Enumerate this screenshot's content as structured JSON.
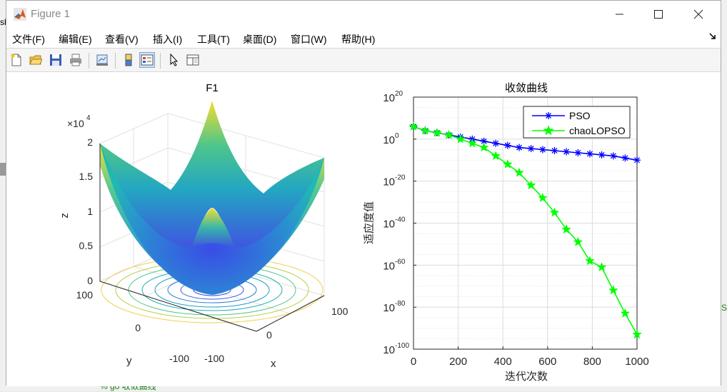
{
  "window": {
    "title": "Figure 1"
  },
  "menu": [
    "文件(F)",
    "编辑(E)",
    "查看(V)",
    "插入(I)",
    "工具(T)",
    "桌面(D)",
    "窗口(W)",
    "帮助(H)"
  ],
  "background": {
    "left_fragment": "sk",
    "right_fragment": "S",
    "code_line": "% go 收敛曲线"
  },
  "surface_plot": {
    "title": "F1",
    "z_exponent_base": "×10",
    "z_exponent_power": "4",
    "z_ticks": [
      "2",
      "1.5",
      "1",
      "0.5",
      "0"
    ],
    "zlabel": "z",
    "y_ticks": [
      "100",
      "0",
      "-100"
    ],
    "ylabel": "y",
    "x_ticks": [
      "-100",
      "0",
      "100"
    ],
    "xlabel": "x"
  },
  "chart_data": {
    "type": "line",
    "title": "收敛曲线",
    "xlabel": "迭代次数",
    "ylabel": "适应度值",
    "xlim": [
      0,
      1000
    ],
    "ylim_log10": [
      -100,
      20
    ],
    "x_ticks": [
      "0",
      "200",
      "400",
      "600",
      "800",
      "1000"
    ],
    "y_ticks": [
      {
        "base": "10",
        "exp": "20"
      },
      {
        "base": "10",
        "exp": "0"
      },
      {
        "base": "10",
        "exp": "-20"
      },
      {
        "base": "10",
        "exp": "-40"
      },
      {
        "base": "10",
        "exp": "-60"
      },
      {
        "base": "10",
        "exp": "-80"
      },
      {
        "base": "10",
        "exp": "-100"
      }
    ],
    "legend_position": "top-right",
    "grid": true,
    "y_scale": "log",
    "series": [
      {
        "name": "PSO",
        "color": "#0000ff",
        "marker": "asterisk",
        "x": [
          0,
          52,
          105,
          158,
          210,
          263,
          315,
          368,
          421,
          473,
          526,
          578,
          631,
          684,
          736,
          789,
          842,
          894,
          947,
          1000
        ],
        "log10_y": [
          6,
          4,
          3,
          2,
          1,
          0,
          -1,
          -2,
          -3,
          -4,
          -4.5,
          -5,
          -5.5,
          -6,
          -6.5,
          -7,
          -7.5,
          -8,
          -9,
          -10
        ]
      },
      {
        "name": "chaoLOPSO",
        "color": "#00ff00",
        "marker": "pentagram",
        "x": [
          0,
          52,
          105,
          158,
          210,
          263,
          315,
          368,
          421,
          473,
          526,
          578,
          631,
          684,
          736,
          789,
          842,
          894,
          947,
          1000
        ],
        "log10_y": [
          6,
          4,
          3,
          2,
          0,
          -2,
          -4,
          -8,
          -12,
          -16,
          -22,
          -28,
          -35,
          -43,
          -49,
          -58,
          -61,
          -72,
          -83,
          -93
        ]
      }
    ]
  }
}
